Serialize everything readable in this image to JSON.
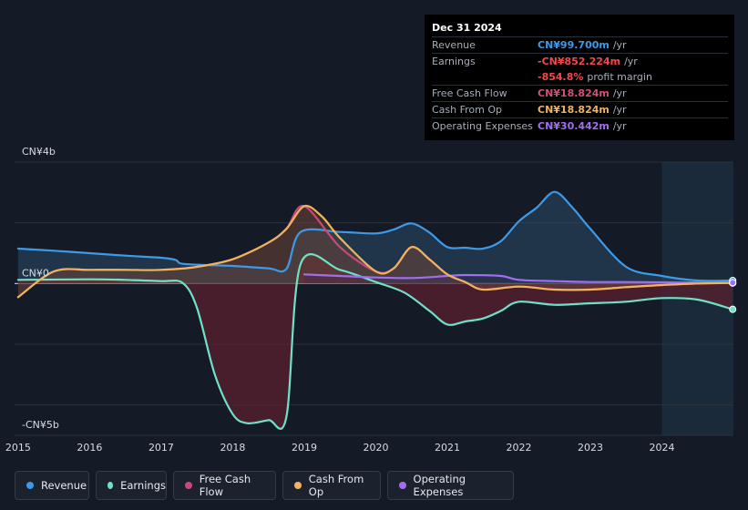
{
  "tooltip": {
    "date": "Dec 31 2024",
    "rows": [
      {
        "label": "Revenue",
        "value": "CN¥99.700m",
        "unit": "/yr",
        "color": "#3d9ae8"
      },
      {
        "label": "Earnings",
        "value": "-CN¥852.224m",
        "unit": "/yr",
        "color": "#f2484b"
      },
      {
        "label": "",
        "value": "-854.8%",
        "unit": "profit margin",
        "color": "#f2484b"
      },
      {
        "label": "Free Cash Flow",
        "value": "CN¥18.824m",
        "unit": "/yr",
        "color": "#d0507c"
      },
      {
        "label": "Cash From Op",
        "value": "CN¥18.824m",
        "unit": "/yr",
        "color": "#f0b35e"
      },
      {
        "label": "Operating Expenses",
        "value": "CN¥30.442m",
        "unit": "/yr",
        "color": "#a26ef0"
      }
    ]
  },
  "legend": [
    {
      "label": "Revenue",
      "color": "#3d9ae8"
    },
    {
      "label": "Earnings",
      "color": "#6fe2c6"
    },
    {
      "label": "Free Cash Flow",
      "color": "#c9487a"
    },
    {
      "label": "Cash From Op",
      "color": "#f0b35e"
    },
    {
      "label": "Operating Expenses",
      "color": "#a26ef0"
    }
  ],
  "chart_data": {
    "type": "line",
    "y_unit": "CN¥b",
    "ylim": [
      -5,
      4
    ],
    "y_tick_labels": [
      {
        "value": 4,
        "label": "CN¥4b"
      },
      {
        "value": 0,
        "label": "CN¥0"
      },
      {
        "value": -5,
        "label": "-CN¥5b"
      }
    ],
    "xlim": [
      2014.95,
      2025.0
    ],
    "x_ticks": [
      "2015",
      "2016",
      "2017",
      "2018",
      "2019",
      "2020",
      "2021",
      "2022",
      "2023",
      "2024"
    ],
    "highlight_start": 2024.0,
    "series": [
      {
        "name": "Revenue",
        "color": "#3d9ae8",
        "points": [
          [
            2015.0,
            1.15
          ],
          [
            2015.5,
            1.08
          ],
          [
            2016.0,
            1.0
          ],
          [
            2016.5,
            0.92
          ],
          [
            2017.0,
            0.85
          ],
          [
            2017.2,
            0.78
          ],
          [
            2017.3,
            0.65
          ],
          [
            2017.75,
            0.6
          ],
          [
            2018.0,
            0.58
          ],
          [
            2018.5,
            0.5
          ],
          [
            2018.75,
            0.48
          ],
          [
            2018.95,
            1.7
          ],
          [
            2019.5,
            1.7
          ],
          [
            2020.0,
            1.65
          ],
          [
            2020.25,
            1.78
          ],
          [
            2020.5,
            1.98
          ],
          [
            2020.75,
            1.68
          ],
          [
            2021.0,
            1.2
          ],
          [
            2021.25,
            1.18
          ],
          [
            2021.5,
            1.15
          ],
          [
            2021.75,
            1.4
          ],
          [
            2022.0,
            2.05
          ],
          [
            2022.25,
            2.5
          ],
          [
            2022.5,
            3.02
          ],
          [
            2022.75,
            2.5
          ],
          [
            2023.0,
            1.8
          ],
          [
            2023.5,
            0.55
          ],
          [
            2024.0,
            0.25
          ],
          [
            2024.5,
            0.1
          ],
          [
            2024.99,
            0.0997
          ]
        ]
      },
      {
        "name": "Earnings",
        "color": "#6fe2c6",
        "points": [
          [
            2015.0,
            0.12
          ],
          [
            2016.0,
            0.14
          ],
          [
            2016.5,
            0.12
          ],
          [
            2017.0,
            0.08
          ],
          [
            2017.3,
            0.02
          ],
          [
            2017.5,
            -0.8
          ],
          [
            2017.75,
            -3.0
          ],
          [
            2018.0,
            -4.3
          ],
          [
            2018.2,
            -4.6
          ],
          [
            2018.5,
            -4.5
          ],
          [
            2018.75,
            -4.4
          ],
          [
            2018.95,
            0.65
          ],
          [
            2019.5,
            0.45
          ],
          [
            2020.0,
            0.05
          ],
          [
            2020.4,
            -0.3
          ],
          [
            2020.75,
            -0.9
          ],
          [
            2021.0,
            -1.35
          ],
          [
            2021.25,
            -1.25
          ],
          [
            2021.5,
            -1.15
          ],
          [
            2021.75,
            -0.9
          ],
          [
            2022.0,
            -0.6
          ],
          [
            2022.5,
            -0.7
          ],
          [
            2023.0,
            -0.65
          ],
          [
            2023.5,
            -0.6
          ],
          [
            2024.0,
            -0.48
          ],
          [
            2024.5,
            -0.53
          ],
          [
            2024.99,
            -0.85
          ]
        ]
      },
      {
        "name": "Free Cash Flow",
        "color": "#c9487a",
        "points": [
          [
            2015.0,
            -0.45
          ],
          [
            2015.5,
            0.4
          ],
          [
            2016.0,
            0.45
          ],
          [
            2016.5,
            0.45
          ],
          [
            2017.0,
            0.45
          ],
          [
            2017.5,
            0.55
          ],
          [
            2018.0,
            0.8
          ],
          [
            2018.5,
            1.35
          ],
          [
            2018.75,
            1.8
          ],
          [
            2019.0,
            2.55
          ],
          [
            2019.5,
            1.2
          ],
          [
            2020.0,
            0.4
          ],
          [
            2020.25,
            0.5
          ],
          [
            2020.5,
            1.2
          ],
          [
            2020.75,
            0.8
          ],
          [
            2021.0,
            0.3
          ],
          [
            2021.25,
            0.05
          ],
          [
            2021.5,
            -0.2
          ],
          [
            2022.0,
            -0.1
          ],
          [
            2022.5,
            -0.2
          ],
          [
            2023.0,
            -0.2
          ],
          [
            2023.5,
            -0.12
          ],
          [
            2024.0,
            -0.05
          ],
          [
            2024.5,
            0.0
          ],
          [
            2024.99,
            0.0188
          ]
        ]
      },
      {
        "name": "Cash From Op",
        "color": "#f0b35e",
        "points": [
          [
            2015.0,
            -0.45
          ],
          [
            2015.5,
            0.4
          ],
          [
            2016.0,
            0.45
          ],
          [
            2016.5,
            0.45
          ],
          [
            2017.0,
            0.45
          ],
          [
            2017.5,
            0.55
          ],
          [
            2018.0,
            0.8
          ],
          [
            2018.5,
            1.35
          ],
          [
            2018.75,
            1.8
          ],
          [
            2019.0,
            2.55
          ],
          [
            2019.25,
            2.2
          ],
          [
            2019.5,
            1.5
          ],
          [
            2020.0,
            0.4
          ],
          [
            2020.25,
            0.5
          ],
          [
            2020.5,
            1.2
          ],
          [
            2020.75,
            0.8
          ],
          [
            2021.0,
            0.3
          ],
          [
            2021.25,
            0.05
          ],
          [
            2021.5,
            -0.2
          ],
          [
            2022.0,
            -0.1
          ],
          [
            2022.5,
            -0.2
          ],
          [
            2023.0,
            -0.2
          ],
          [
            2023.5,
            -0.12
          ],
          [
            2024.0,
            -0.05
          ],
          [
            2024.5,
            0.0
          ],
          [
            2024.99,
            0.0188
          ]
        ]
      },
      {
        "name": "Operating Expenses",
        "color": "#a26ef0",
        "points": [
          [
            2019.0,
            0.3
          ],
          [
            2019.5,
            0.25
          ],
          [
            2020.0,
            0.2
          ],
          [
            2020.5,
            0.18
          ],
          [
            2021.0,
            0.25
          ],
          [
            2021.25,
            0.28
          ],
          [
            2021.75,
            0.25
          ],
          [
            2022.0,
            0.12
          ],
          [
            2022.5,
            0.08
          ],
          [
            2023.0,
            0.05
          ],
          [
            2023.5,
            0.05
          ],
          [
            2024.0,
            0.04
          ],
          [
            2024.5,
            0.03
          ],
          [
            2024.99,
            0.0304
          ]
        ]
      }
    ]
  }
}
